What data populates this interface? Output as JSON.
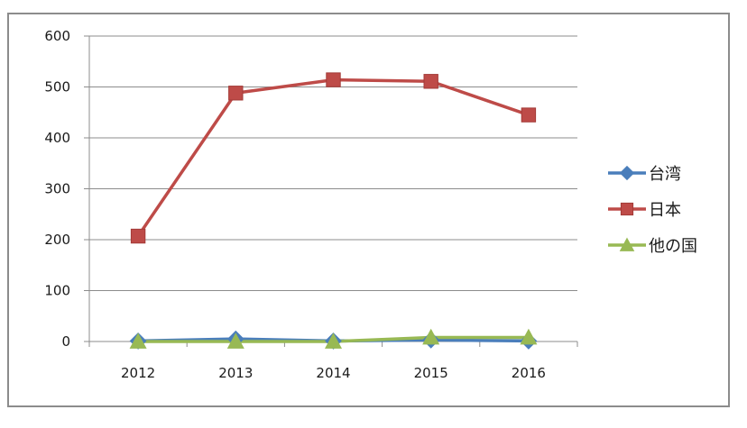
{
  "chart_data": {
    "type": "line",
    "title": "",
    "xlabel": "",
    "ylabel": "",
    "categories": [
      "2012",
      "2013",
      "2014",
      "2015",
      "2016"
    ],
    "ylim": [
      0,
      600
    ],
    "yticks": [
      0,
      100,
      200,
      300,
      400,
      500,
      600
    ],
    "grid": true,
    "legend_position": "right",
    "series": [
      {
        "name": "台湾",
        "values": [
          1,
          5,
          1,
          3,
          1
        ],
        "color": "#4a7ebb",
        "marker": "diamond"
      },
      {
        "name": "日本",
        "values": [
          207,
          488,
          514,
          511,
          445
        ],
        "color": "#be4b48",
        "marker": "square"
      },
      {
        "name": "他の国",
        "values": [
          0,
          0,
          0,
          8,
          8
        ],
        "color": "#98b954",
        "marker": "triangle"
      }
    ]
  }
}
